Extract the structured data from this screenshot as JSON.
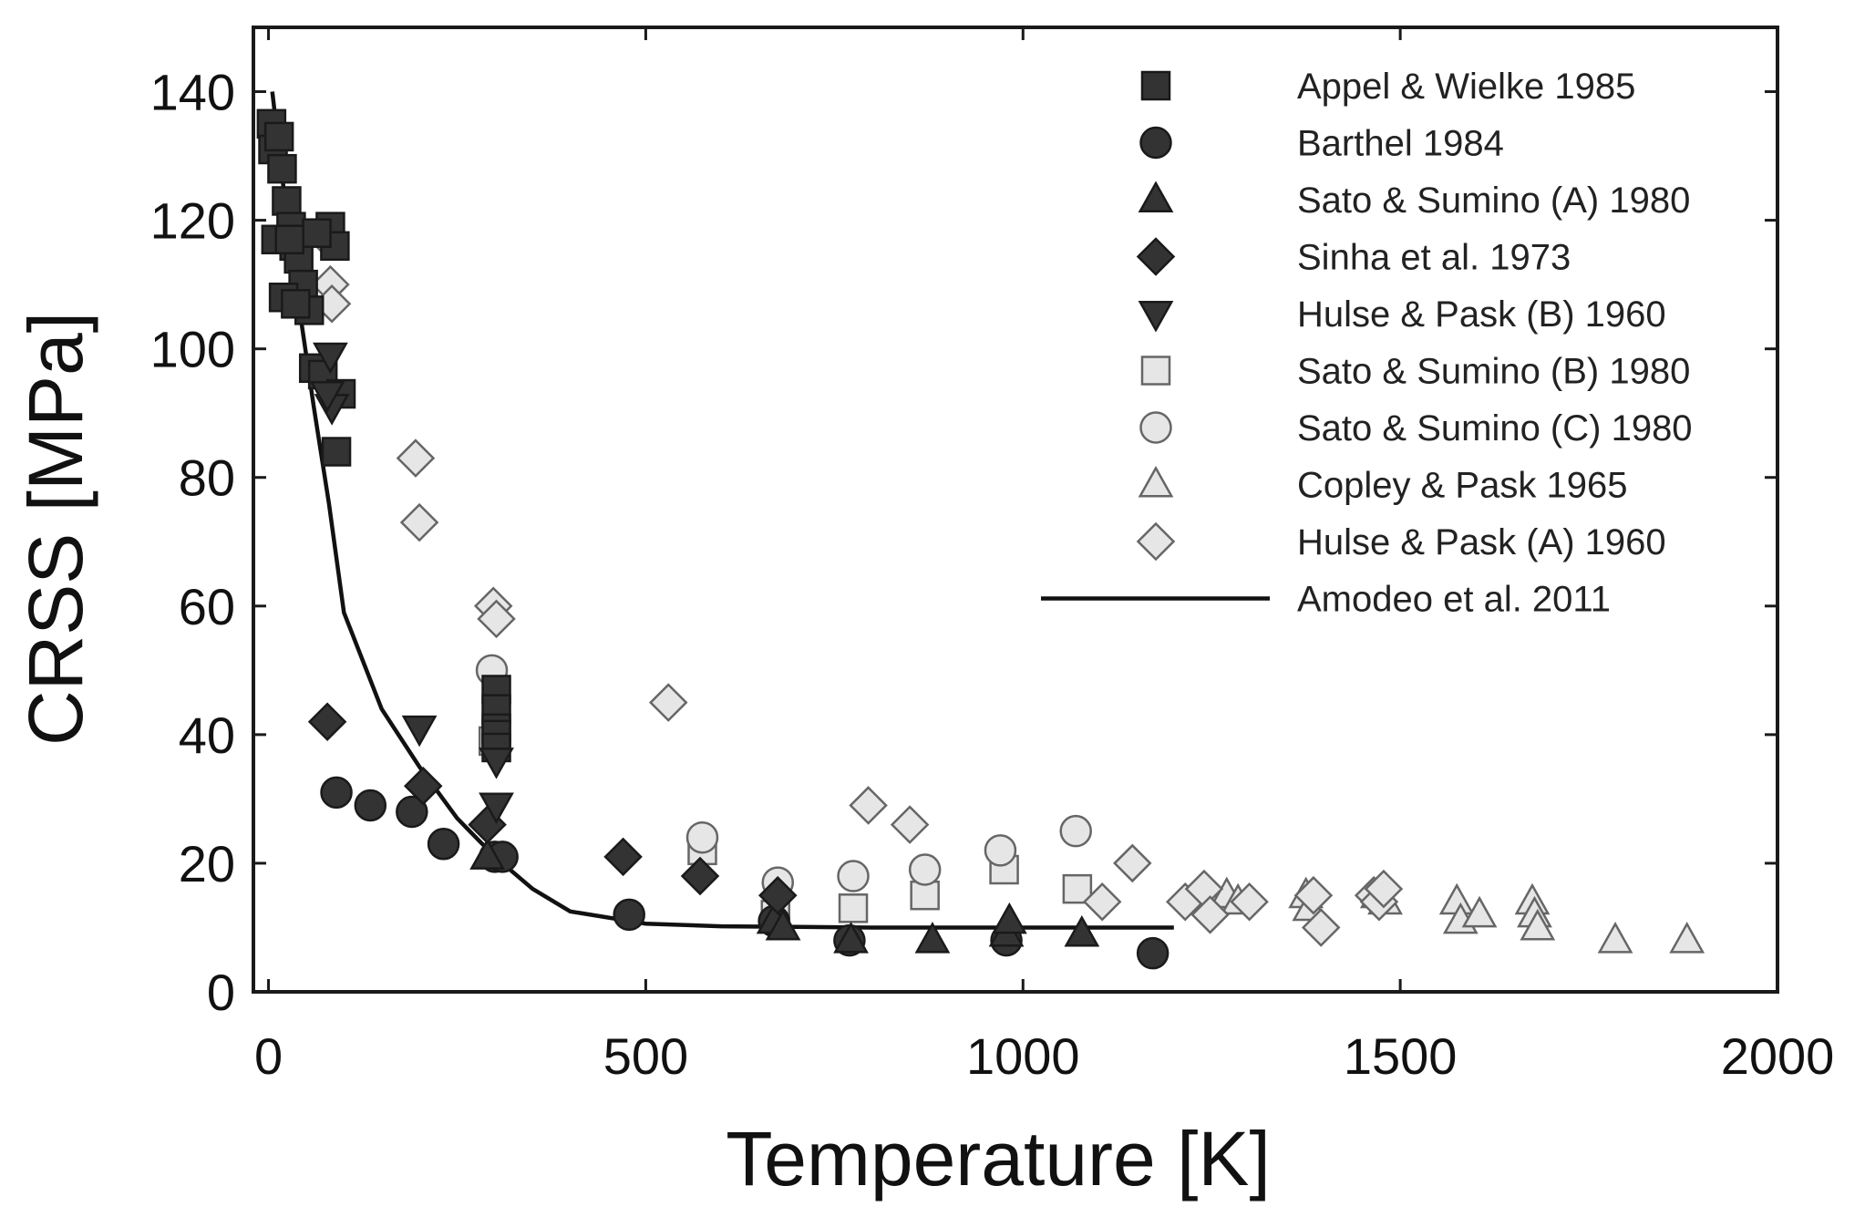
{
  "chart_data": {
    "type": "scatter",
    "title": "",
    "xlabel": "Temperature [K]",
    "ylabel": "CRSS [MPa]",
    "xlim": [
      -20,
      2000
    ],
    "ylim": [
      0,
      150
    ],
    "xticks": [
      0,
      500,
      1000,
      1500,
      2000
    ],
    "yticks": [
      0,
      20,
      40,
      60,
      80,
      100,
      120,
      140
    ],
    "xtick_labels": [
      "0",
      "500",
      "1000",
      "1500",
      "2000"
    ],
    "ytick_labels": [
      "0",
      "20",
      "40",
      "60",
      "80",
      "100",
      "120",
      "140"
    ],
    "legend_position": "top-right",
    "series": [
      {
        "name": "Appel & Wielke 1985",
        "marker": "square",
        "fill": "#333333",
        "stroke": "#1a1a1a",
        "points": [
          [
            4,
            135
          ],
          [
            6,
            131
          ],
          [
            14,
            133
          ],
          [
            18,
            128
          ],
          [
            24,
            123
          ],
          [
            30,
            119
          ],
          [
            34,
            116
          ],
          [
            40,
            114
          ],
          [
            46,
            110
          ],
          [
            54,
            106
          ],
          [
            60,
            97
          ],
          [
            72,
            96
          ],
          [
            82,
            119
          ],
          [
            88,
            116
          ],
          [
            96,
            93
          ],
          [
            90,
            84
          ],
          [
            20,
            108
          ],
          [
            36,
            107
          ],
          [
            64,
            118
          ],
          [
            10,
            117
          ],
          [
            28,
            117
          ],
          [
            302,
            47
          ],
          [
            302,
            44
          ],
          [
            302,
            41
          ],
          [
            302,
            40
          ],
          [
            302,
            38
          ]
        ]
      },
      {
        "name": "Barthel 1984",
        "marker": "circle",
        "fill": "#333333",
        "stroke": "#1a1a1a",
        "points": [
          [
            90,
            31
          ],
          [
            135,
            29
          ],
          [
            190,
            28
          ],
          [
            232,
            23
          ],
          [
            300,
            21
          ],
          [
            310,
            21
          ],
          [
            478,
            12
          ],
          [
            670,
            11
          ],
          [
            770,
            8
          ],
          [
            978,
            8
          ],
          [
            1172,
            6
          ]
        ]
      },
      {
        "name": "Sato & Sumino (A) 1980",
        "marker": "triangle-up",
        "fill": "#333333",
        "stroke": "#1a1a1a",
        "points": [
          [
            290,
            21
          ],
          [
            670,
            11
          ],
          [
            682,
            10
          ],
          [
            772,
            8
          ],
          [
            880,
            8
          ],
          [
            978,
            9
          ],
          [
            982,
            11
          ],
          [
            1078,
            9
          ]
        ]
      },
      {
        "name": "Sinha et al. 1973",
        "marker": "diamond",
        "fill": "#333333",
        "stroke": "#1a1a1a",
        "points": [
          [
            78,
            42
          ],
          [
            205,
            32
          ],
          [
            290,
            26
          ],
          [
            470,
            21
          ],
          [
            572,
            18
          ],
          [
            675,
            15
          ]
        ]
      },
      {
        "name": "Hulse & Pask (B) 1960",
        "marker": "triangle-down",
        "fill": "#333333",
        "stroke": "#1a1a1a",
        "points": [
          [
            82,
            99
          ],
          [
            84,
            91
          ],
          [
            78,
            93
          ],
          [
            200,
            41
          ],
          [
            302,
            36
          ],
          [
            302,
            29
          ]
        ]
      },
      {
        "name": "Sato & Sumino (B) 1980",
        "marker": "square",
        "fill": "#e6e6e6",
        "stroke": "#666666",
        "points": [
          [
            298,
            39
          ],
          [
            575,
            22
          ],
          [
            672,
            12
          ],
          [
            775,
            13
          ],
          [
            870,
            15
          ],
          [
            975,
            19
          ],
          [
            1072,
            16
          ]
        ]
      },
      {
        "name": "Sato & Sumino (C) 1980",
        "marker": "circle",
        "fill": "#e6e6e6",
        "stroke": "#666666",
        "points": [
          [
            296,
            50
          ],
          [
            575,
            24
          ],
          [
            675,
            17
          ],
          [
            775,
            18
          ],
          [
            870,
            19
          ],
          [
            970,
            22
          ],
          [
            1070,
            25
          ]
        ]
      },
      {
        "name": "Copley & Pask 1965",
        "marker": "triangle-up",
        "fill": "#e6e6e6",
        "stroke": "#666666",
        "points": [
          [
            1270,
            15
          ],
          [
            1285,
            14
          ],
          [
            1375,
            15
          ],
          [
            1380,
            13
          ],
          [
            1470,
            15
          ],
          [
            1480,
            14
          ],
          [
            1575,
            14
          ],
          [
            1580,
            11
          ],
          [
            1605,
            12
          ],
          [
            1675,
            14
          ],
          [
            1678,
            12
          ],
          [
            1682,
            10
          ],
          [
            1785,
            8
          ],
          [
            1880,
            8
          ]
        ]
      },
      {
        "name": "Hulse & Pask (A) 1960",
        "marker": "diamond",
        "fill": "#e6e6e6",
        "stroke": "#666666",
        "points": [
          [
            78,
            117
          ],
          [
            82,
            110
          ],
          [
            84,
            107
          ],
          [
            195,
            83
          ],
          [
            200,
            73
          ],
          [
            298,
            60
          ],
          [
            302,
            58
          ],
          [
            530,
            45
          ],
          [
            795,
            29
          ],
          [
            850,
            26
          ],
          [
            1105,
            14
          ],
          [
            1145,
            20
          ],
          [
            1215,
            14
          ],
          [
            1240,
            16
          ],
          [
            1248,
            12
          ],
          [
            1300,
            14
          ],
          [
            1385,
            15
          ],
          [
            1395,
            10
          ],
          [
            1465,
            15
          ],
          [
            1472,
            14
          ],
          [
            1478,
            16
          ]
        ]
      }
    ],
    "fit_line": {
      "name": "Amodeo et al. 2011",
      "points": [
        [
          5,
          140
        ],
        [
          20,
          125
        ],
        [
          40,
          107
        ],
        [
          60,
          91
        ],
        [
          80,
          76
        ],
        [
          100,
          59
        ],
        [
          150,
          44
        ],
        [
          200,
          35
        ],
        [
          250,
          27
        ],
        [
          300,
          21
        ],
        [
          350,
          16
        ],
        [
          400,
          12.5
        ],
        [
          500,
          10.6
        ],
        [
          600,
          10.2
        ],
        [
          700,
          10.1
        ],
        [
          800,
          10
        ],
        [
          900,
          10
        ],
        [
          1000,
          10
        ],
        [
          1100,
          10
        ],
        [
          1200,
          10
        ]
      ]
    }
  }
}
